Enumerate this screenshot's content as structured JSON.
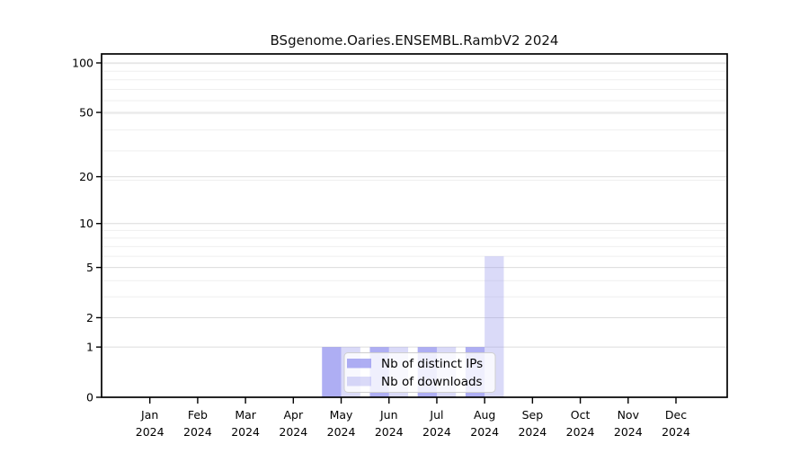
{
  "title": "BSgenome.Oaries.ENSEMBL.RambV2 2024",
  "colors": {
    "distinct_ips_bar": "rgba(140,140,238,0.70)",
    "downloads_bar": "rgba(150,150,235,0.35)",
    "major_grid": "#dcdcdc",
    "minor_grid": "#efefef",
    "axis": "#000000",
    "legend_border": "#cfcfcf",
    "legend_background": "rgba(255,255,255,0.8)"
  },
  "chart_data": {
    "type": "bar",
    "title": "BSgenome.Oaries.ENSEMBL.RambV2 2024",
    "categories": [
      "Jan 2024",
      "Feb 2024",
      "Mar 2024",
      "Apr 2024",
      "May 2024",
      "Jun 2024",
      "Jul 2024",
      "Aug 2024",
      "Sep 2024",
      "Oct 2024",
      "Nov 2024",
      "Dec 2024"
    ],
    "series": [
      {
        "name": "Nb of distinct IPs",
        "values": [
          0,
          0,
          0,
          0,
          1,
          1,
          1,
          1,
          0,
          0,
          0,
          0
        ],
        "color": "rgba(140,140,238,0.70)"
      },
      {
        "name": "Nb of downloads",
        "values": [
          0,
          0,
          0,
          0,
          1,
          1,
          1,
          6,
          0,
          0,
          0,
          0
        ],
        "color": "rgba(150,150,235,0.35)"
      }
    ],
    "y_ticks": [
      0,
      1,
      2,
      5,
      10,
      20,
      50,
      100
    ],
    "y_scale": "log1p",
    "ylim": [
      0,
      102
    ],
    "xlabel": "",
    "ylabel": "",
    "grid": true,
    "legend_position": "inside-bottom-center",
    "legend_labels": [
      "Nb of distinct IPs",
      "Nb of downloads"
    ]
  }
}
